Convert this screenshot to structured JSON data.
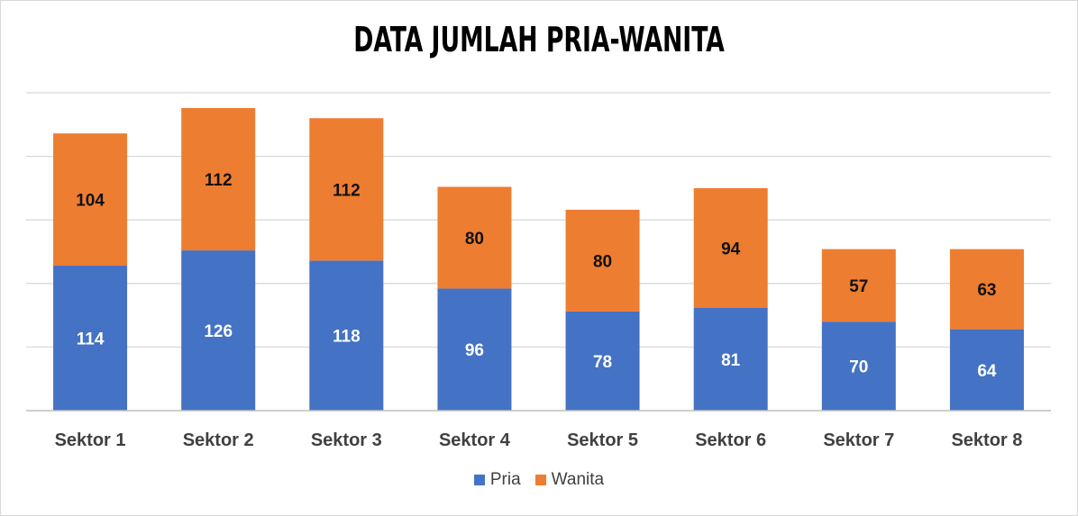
{
  "chart_data": {
    "type": "bar",
    "stacked": true,
    "title": "DATA JUMLAH PRIA-WANITA",
    "categories": [
      "Sektor 1",
      "Sektor 2",
      "Sektor 3",
      "Sektor 4",
      "Sektor 5",
      "Sektor 6",
      "Sektor 7",
      "Sektor 8"
    ],
    "series": [
      {
        "name": "Pria",
        "color": "#4472c4",
        "values": [
          114,
          126,
          118,
          96,
          78,
          81,
          70,
          64
        ]
      },
      {
        "name": "Wanita",
        "color": "#ed7d31",
        "values": [
          104,
          112,
          112,
          80,
          80,
          94,
          57,
          63
        ]
      }
    ],
    "ylim": [
      0,
      250
    ],
    "grid": true,
    "legend_position": "bottom"
  }
}
